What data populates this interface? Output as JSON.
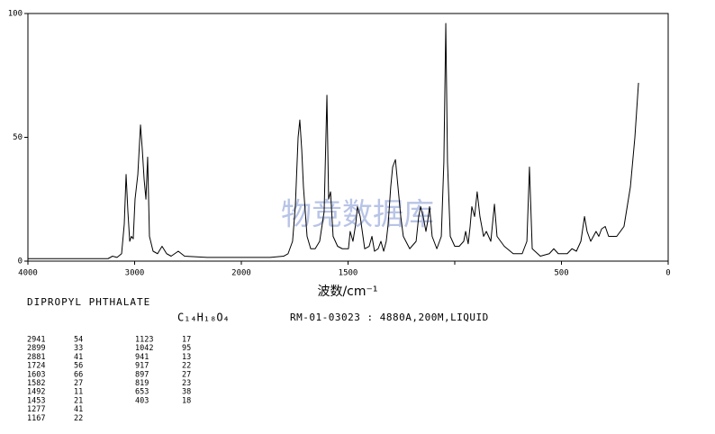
{
  "chart_data": {
    "type": "line",
    "x_label": "波数/cm⁻¹",
    "compound": "DIPROPYL PHTHALATE",
    "formula": "C₁₄H₁₈O₄",
    "reference": "RM-01-03023 : 4880A,200M,LIQUID",
    "watermark": "物竞数据库",
    "xlim": [
      4000,
      0
    ],
    "xticks": [
      4000,
      3000,
      2000,
      1500,
      {
        "value": 1000,
        "label": null
      },
      500,
      0
    ],
    "ylim": [
      0,
      100
    ],
    "yticks": [
      0,
      50,
      100
    ],
    "series": [
      {
        "name": null,
        "color": "#000000",
        "x": [
          4000,
          3249,
          3207,
          3165,
          3122,
          3097,
          3080,
          3063,
          3046,
          3030,
          3013,
          2996,
          2970,
          2945,
          2928,
          2911,
          2894,
          2878,
          2861,
          2827,
          2785,
          2743,
          2700,
          2658,
          2591,
          2532,
          2321,
          2000,
          1865,
          1802,
          1781,
          1760,
          1747,
          1734,
          1726,
          1717,
          1709,
          1692,
          1675,
          1654,
          1633,
          1612,
          1599,
          1591,
          1582,
          1570,
          1549,
          1527,
          1498,
          1490,
          1477,
          1464,
          1456,
          1443,
          1422,
          1401,
          1388,
          1376,
          1359,
          1346,
          1333,
          1321,
          1312,
          1300,
          1291,
          1278,
          1266,
          1253,
          1241,
          1211,
          1181,
          1169,
          1160,
          1148,
          1135,
          1127,
          1118,
          1106,
          1084,
          1063,
          1051,
          1042,
          1034,
          1021,
          1000,
          979,
          958,
          949,
          937,
          928,
          920,
          907,
          895,
          882,
          865,
          852,
          831,
          814,
          802,
          768,
          726,
          684,
          662,
          650,
          637,
          599,
          557,
          536,
          515,
          473,
          451,
          430,
          409,
          392,
          380,
          363,
          338,
          325,
          312,
          295,
          279,
          241,
          207,
          177,
          156,
          139
        ],
        "values": [
          1,
          1,
          2,
          1.5,
          3,
          15,
          35,
          20,
          8,
          10,
          9,
          25,
          35,
          55,
          45,
          33,
          25,
          42,
          10,
          4,
          3,
          6,
          3,
          2,
          4,
          2,
          1.5,
          1.5,
          1.5,
          2,
          3,
          8,
          22,
          50,
          57,
          45,
          30,
          10,
          5,
          5,
          8,
          20,
          67,
          25,
          28,
          10,
          6,
          5,
          5,
          12,
          8,
          15,
          22,
          18,
          5,
          6,
          10,
          4,
          5,
          8,
          4,
          8,
          15,
          30,
          38,
          41,
          30,
          18,
          10,
          5,
          8,
          18,
          22,
          18,
          12,
          16,
          22,
          10,
          5,
          10,
          40,
          96,
          40,
          10,
          6,
          6,
          8,
          12,
          7,
          14,
          22,
          18,
          28,
          18,
          10,
          12,
          8,
          23,
          10,
          6,
          3,
          3,
          8,
          38,
          5,
          2,
          3,
          5,
          3,
          3,
          5,
          4,
          8,
          18,
          12,
          8,
          12,
          10,
          13,
          14,
          10,
          10,
          14,
          30,
          50,
          72
        ]
      }
    ],
    "peak_table": {
      "left": [
        [
          2941,
          54
        ],
        [
          2899,
          33
        ],
        [
          2881,
          41
        ],
        [
          1724,
          56
        ],
        [
          1603,
          66
        ],
        [
          1582,
          27
        ],
        [
          1492,
          11
        ],
        [
          1453,
          21
        ],
        [
          1277,
          41
        ],
        [
          1167,
          22
        ]
      ],
      "right": [
        [
          1123,
          17
        ],
        [
          1042,
          95
        ],
        [
          941,
          13
        ],
        [
          917,
          22
        ],
        [
          897,
          27
        ],
        [
          819,
          23
        ],
        [
          653,
          38
        ],
        [
          403,
          18
        ]
      ]
    }
  }
}
